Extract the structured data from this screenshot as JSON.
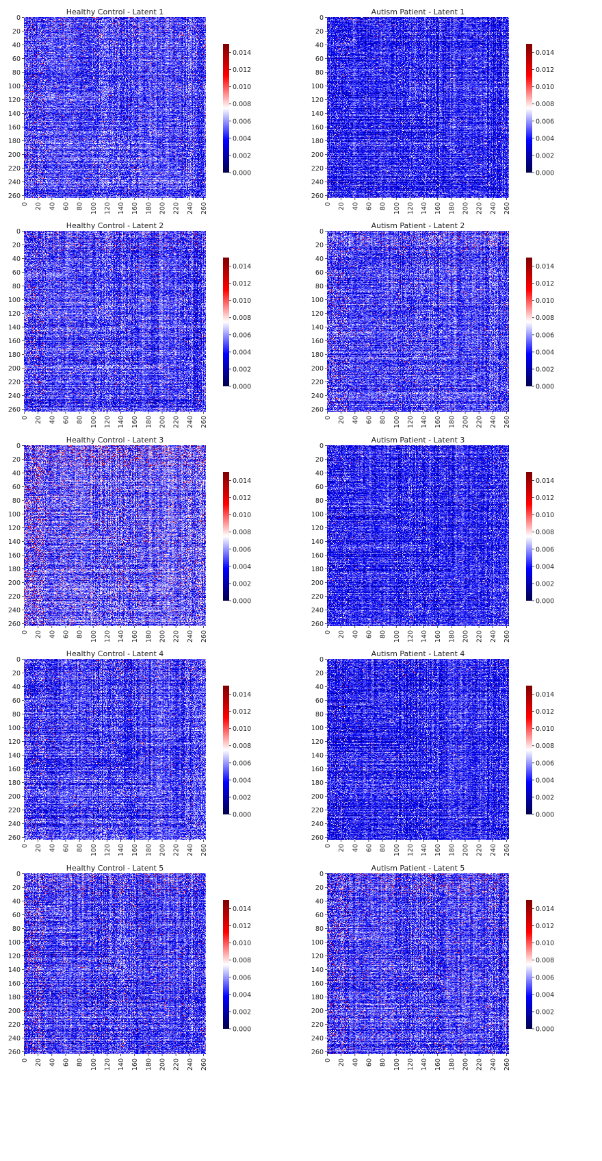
{
  "chart_data": {
    "type": "heatmap",
    "grid": false,
    "legend": "colorbar-right",
    "colormap": {
      "name": "seismic",
      "stops": [
        "#00004c",
        "#0000ff",
        "#ffffff",
        "#ff0000",
        "#7f0000"
      ],
      "vmin": 0.0,
      "vmax": 0.015
    },
    "colorbar_ticks": [
      "0.000",
      "0.002",
      "0.004",
      "0.006",
      "0.008",
      "0.010",
      "0.012",
      "0.014"
    ],
    "colorbar_tick_values": [
      0.0,
      0.002,
      0.004,
      0.006,
      0.008,
      0.01,
      0.012,
      0.014
    ],
    "matrix_size": 264,
    "x_ticks": [
      "0",
      "20",
      "40",
      "60",
      "80",
      "100",
      "120",
      "140",
      "160",
      "180",
      "200",
      "220",
      "240",
      "260"
    ],
    "y_ticks": [
      "0",
      "20",
      "40",
      "60",
      "80",
      "100",
      "120",
      "140",
      "160",
      "180",
      "200",
      "220",
      "240",
      "260"
    ],
    "tick_values": [
      0,
      20,
      40,
      60,
      80,
      100,
      120,
      140,
      160,
      180,
      200,
      220,
      240,
      260
    ],
    "panels": [
      {
        "title": "Healthy Control - Latent 1",
        "mean_level": 0.0045,
        "red_density": 0.02
      },
      {
        "title": "Autism Patient - Latent 1",
        "mean_level": 0.004,
        "red_density": 0.005
      },
      {
        "title": "Healthy Control - Latent 2",
        "mean_level": 0.0045,
        "red_density": 0.02
      },
      {
        "title": "Autism Patient - Latent 2",
        "mean_level": 0.0045,
        "red_density": 0.02
      },
      {
        "title": "Healthy Control - Latent 3",
        "mean_level": 0.005,
        "red_density": 0.05
      },
      {
        "title": "Autism Patient - Latent 3",
        "mean_level": 0.004,
        "red_density": 0.005
      },
      {
        "title": "Healthy Control - Latent 4",
        "mean_level": 0.0045,
        "red_density": 0.015
      },
      {
        "title": "Autism Patient - Latent 4",
        "mean_level": 0.004,
        "red_density": 0.005
      },
      {
        "title": "Healthy Control - Latent 5",
        "mean_level": 0.0045,
        "red_density": 0.03
      },
      {
        "title": "Autism Patient - Latent 5",
        "mean_level": 0.0045,
        "red_density": 0.03
      }
    ]
  }
}
